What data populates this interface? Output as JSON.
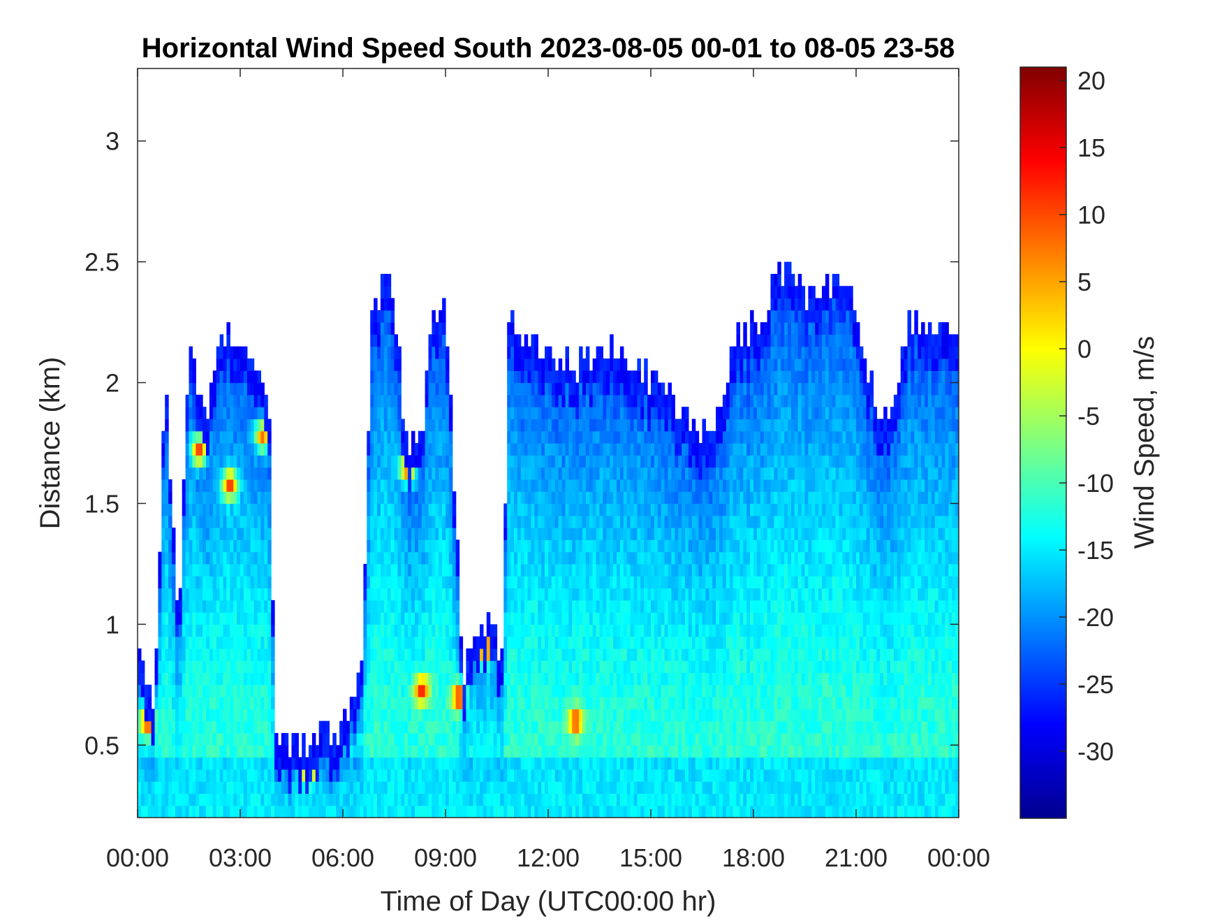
{
  "chart_data": {
    "type": "heatmap",
    "title": "Horizontal Wind Speed South 2023-08-05 00-01 to 08-05 23-58",
    "xlabel": "Time of Day (UTC00:00 hr)",
    "ylabel": "Distance (km)",
    "colorbar_label": "Wind Speed, m/s",
    "xlim": [
      0,
      24
    ],
    "ylim": [
      0.2,
      3.3
    ],
    "clim": [
      -35,
      21
    ],
    "colormap": "jet",
    "x_ticks": [
      {
        "value": 0,
        "label": "00:00"
      },
      {
        "value": 3,
        "label": "03:00"
      },
      {
        "value": 6,
        "label": "06:00"
      },
      {
        "value": 9,
        "label": "09:00"
      },
      {
        "value": 12,
        "label": "12:00"
      },
      {
        "value": 15,
        "label": "15:00"
      },
      {
        "value": 18,
        "label": "18:00"
      },
      {
        "value": 21,
        "label": "21:00"
      },
      {
        "value": 24,
        "label": "00:00"
      }
    ],
    "y_ticks": [
      {
        "value": 0.5,
        "label": "0.5"
      },
      {
        "value": 1,
        "label": "1"
      },
      {
        "value": 1.5,
        "label": "1.5"
      },
      {
        "value": 2,
        "label": "2"
      },
      {
        "value": 2.5,
        "label": "2.5"
      },
      {
        "value": 3,
        "label": "3"
      }
    ],
    "colorbar_ticks": [
      {
        "value": 20,
        "label": "20"
      },
      {
        "value": 15,
        "label": "15"
      },
      {
        "value": 10,
        "label": "10"
      },
      {
        "value": 5,
        "label": "5"
      },
      {
        "value": 0,
        "label": "0"
      },
      {
        "value": -5,
        "label": "-5"
      },
      {
        "value": -10,
        "label": "-10"
      },
      {
        "value": -15,
        "label": "-15"
      },
      {
        "value": -20,
        "label": "-20"
      },
      {
        "value": -25,
        "label": "-25"
      },
      {
        "value": -30,
        "label": "-30"
      }
    ],
    "grid": false,
    "data_top_profile_km": [
      {
        "hour": 0.0,
        "top": 0.85
      },
      {
        "hour": 0.5,
        "top": 0.62
      },
      {
        "hour": 0.8,
        "top": 2.05
      },
      {
        "hour": 1.2,
        "top": 0.9
      },
      {
        "hour": 1.5,
        "top": 2.15
      },
      {
        "hour": 2.0,
        "top": 1.8
      },
      {
        "hour": 2.5,
        "top": 2.2
      },
      {
        "hour": 3.0,
        "top": 2.15
      },
      {
        "hour": 3.5,
        "top": 2.05
      },
      {
        "hour": 3.9,
        "top": 1.75
      },
      {
        "hour": 4.0,
        "top": 0.48
      },
      {
        "hour": 5.0,
        "top": 0.48
      },
      {
        "hour": 6.0,
        "top": 0.55
      },
      {
        "hour": 6.6,
        "top": 0.8
      },
      {
        "hour": 6.8,
        "top": 2.2
      },
      {
        "hour": 7.3,
        "top": 2.45
      },
      {
        "hour": 7.6,
        "top": 2.2
      },
      {
        "hour": 7.8,
        "top": 1.75
      },
      {
        "hour": 8.3,
        "top": 1.7
      },
      {
        "hour": 8.6,
        "top": 2.25
      },
      {
        "hour": 9.0,
        "top": 2.3
      },
      {
        "hour": 9.5,
        "top": 0.8
      },
      {
        "hour": 10.2,
        "top": 1.0
      },
      {
        "hour": 10.7,
        "top": 0.85
      },
      {
        "hour": 10.8,
        "top": 2.25
      },
      {
        "hour": 12.0,
        "top": 2.1
      },
      {
        "hour": 13.0,
        "top": 2.05
      },
      {
        "hour": 14.0,
        "top": 2.1
      },
      {
        "hour": 15.0,
        "top": 2.0
      },
      {
        "hour": 16.0,
        "top": 1.85
      },
      {
        "hour": 16.5,
        "top": 1.75
      },
      {
        "hour": 17.0,
        "top": 1.85
      },
      {
        "hour": 17.5,
        "top": 2.15
      },
      {
        "hour": 18.0,
        "top": 2.2
      },
      {
        "hour": 18.5,
        "top": 2.35
      },
      {
        "hour": 19.0,
        "top": 2.5
      },
      {
        "hour": 19.5,
        "top": 2.3
      },
      {
        "hour": 20.0,
        "top": 2.35
      },
      {
        "hour": 20.5,
        "top": 2.4
      },
      {
        "hour": 21.0,
        "top": 2.3
      },
      {
        "hour": 21.5,
        "top": 1.9
      },
      {
        "hour": 22.0,
        "top": 1.8
      },
      {
        "hour": 22.5,
        "top": 2.2
      },
      {
        "hour": 23.0,
        "top": 2.25
      },
      {
        "hour": 24.0,
        "top": 2.2
      }
    ],
    "high_speed_features": [
      {
        "hour": 0.3,
        "distance_km": 0.6,
        "speed": 14
      },
      {
        "hour": 1.8,
        "distance_km": 1.72,
        "speed": 12
      },
      {
        "hour": 2.7,
        "distance_km": 1.58,
        "speed": 12
      },
      {
        "hour": 3.65,
        "distance_km": 1.78,
        "speed": 8
      },
      {
        "hour": 5.0,
        "distance_km": 0.4,
        "speed": 15
      },
      {
        "hour": 7.9,
        "distance_km": 1.65,
        "speed": 12
      },
      {
        "hour": 8.3,
        "distance_km": 0.73,
        "speed": 13
      },
      {
        "hour": 9.4,
        "distance_km": 0.7,
        "speed": 14
      },
      {
        "hour": 10.15,
        "distance_km": 0.9,
        "speed": 16
      },
      {
        "hour": 12.8,
        "distance_km": 0.6,
        "speed": 12
      }
    ]
  }
}
